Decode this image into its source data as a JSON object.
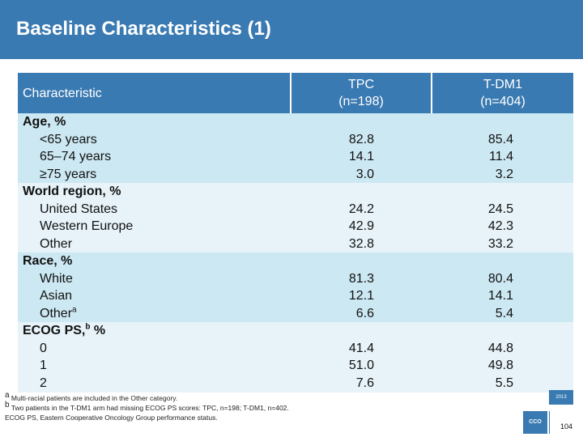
{
  "slide": {
    "title": "Baseline Characteristics (1)",
    "page_number": "104",
    "logo_text": "CCO",
    "badge_text": "2013"
  },
  "table": {
    "headers": {
      "characteristic": "Characteristic",
      "tpc_line1": "TPC",
      "tpc_line2": "(n=198)",
      "tdm1_line1": "T-DM1",
      "tdm1_line2": "(n=404)"
    },
    "groups": [
      {
        "label": "Age, %",
        "sup": "",
        "label_suffix": "",
        "rows": [
          {
            "label": "<65 years",
            "tpc": "82.8",
            "tdm1": "85.4"
          },
          {
            "label": "65–74 years",
            "tpc": "14.1",
            "tdm1": "11.4"
          },
          {
            "label": "≥75 years",
            "tpc": "3.0",
            "tdm1": "3.2"
          }
        ]
      },
      {
        "label": "World region, %",
        "sup": "",
        "label_suffix": "",
        "rows": [
          {
            "label": "United States",
            "tpc": "24.2",
            "tdm1": "24.5"
          },
          {
            "label": "Western Europe",
            "tpc": "42.9",
            "tdm1": "42.3"
          },
          {
            "label": "Other",
            "tpc": "32.8",
            "tdm1": "33.2"
          }
        ]
      },
      {
        "label": "Race, %",
        "sup": "",
        "label_suffix": "",
        "rows": [
          {
            "label": "White",
            "tpc": "81.3",
            "tdm1": "80.4"
          },
          {
            "label": "Asian",
            "tpc": "12.1",
            "tdm1": "14.1"
          },
          {
            "label": "Other",
            "sup": "a",
            "tpc": "6.6",
            "tdm1": "5.4"
          }
        ]
      },
      {
        "label": "ECOG PS,",
        "sup": "b",
        "label_suffix": " %",
        "rows": [
          {
            "label": "0",
            "tpc": "41.4",
            "tdm1": "44.8"
          },
          {
            "label": "1",
            "tpc": "51.0",
            "tdm1": "49.8"
          },
          {
            "label": "2",
            "tpc": "7.6",
            "tdm1": "5.5"
          }
        ]
      }
    ]
  },
  "footnotes": [
    {
      "mark": "a",
      "text": " Multi-racial patients are included in the Other category."
    },
    {
      "mark": "b",
      "text": " Two patients in the T-DM1 arm had missing ECOG PS scores: TPC, n=198; T-DM1, n=402."
    },
    {
      "mark": "",
      "text": "ECOG PS, Eastern Cooperative Oncology Group performance status."
    }
  ]
}
